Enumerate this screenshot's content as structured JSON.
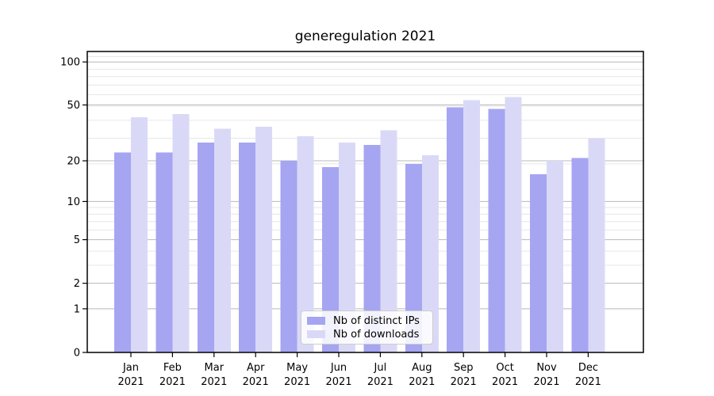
{
  "chart_data": {
    "type": "bar",
    "title": "generegulation 2021",
    "categories": [
      "Jan 2021",
      "Feb 2021",
      "Mar 2021",
      "Apr 2021",
      "May 2021",
      "Jun 2021",
      "Jul 2021",
      "Aug 2021",
      "Sep 2021",
      "Oct 2021",
      "Nov 2021",
      "Dec 2021"
    ],
    "series": [
      {
        "name": "Nb of distinct IPs",
        "color": "#a5a5f2",
        "values": [
          23,
          23,
          27,
          27,
          20,
          18,
          26,
          19,
          48,
          47,
          16,
          21
        ]
      },
      {
        "name": "Nb of downloads",
        "color": "#d9d9f7",
        "values": [
          41,
          43,
          34,
          35,
          30,
          27,
          33,
          22,
          54,
          57,
          20,
          29
        ]
      }
    ],
    "xlabel": "",
    "ylabel": "",
    "yscale": "log1p",
    "yticks": [
      0,
      1,
      2,
      5,
      10,
      20,
      50,
      100
    ],
    "ylim": [
      0,
      118
    ],
    "grid": "horizontal-major-and-minor",
    "legend_position": "lower-center",
    "colors": {
      "major_grid": "#b8b8b8",
      "minor_grid": "#e6e6e6",
      "spine": "#000000",
      "text": "#000000"
    }
  }
}
